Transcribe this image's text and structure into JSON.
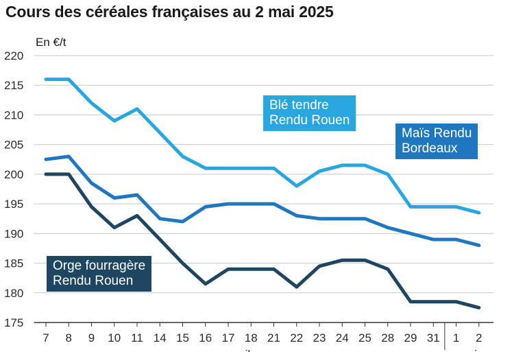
{
  "title": "Cours des céréales françaises au 2 mai 2025",
  "colors": {
    "ble": "#27a6df",
    "mais": "#1f78bf",
    "orge": "#1e4661",
    "grid": "#c9c9c9",
    "axis": "#333333"
  },
  "chart_data": {
    "type": "line",
    "title": "Cours des céréales françaises au 2 mai 2025",
    "ylabel": "En €/t",
    "ylim": [
      175,
      220
    ],
    "yticks": [
      175,
      180,
      185,
      190,
      195,
      200,
      205,
      210,
      215,
      220
    ],
    "grid": true,
    "categories": [
      "7",
      "8",
      "9",
      "10",
      "11",
      "14",
      "15",
      "16",
      "17",
      "18",
      "21",
      "22",
      "23",
      "24",
      "25",
      "28",
      "29",
      "31",
      "1",
      "2"
    ],
    "month_labels": [
      "avril",
      "mai"
    ],
    "series": [
      {
        "name": "Blé tendre Rendu Rouen",
        "name_lines": [
          "Blé tendre",
          "Rendu Rouen"
        ],
        "color": "#27a6df",
        "values": [
          216,
          216,
          212,
          209,
          211,
          207,
          203,
          201,
          201,
          201,
          201,
          198,
          200.5,
          201.5,
          201.5,
          200,
          194.5,
          194.5,
          194.5,
          193.5
        ]
      },
      {
        "name": "Maïs Rendu Bordeaux",
        "name_lines": [
          "Maïs Rendu",
          "Bordeaux"
        ],
        "color": "#1f78bf",
        "values": [
          202.5,
          203,
          198.5,
          196,
          196.5,
          192.5,
          192,
          194.5,
          195,
          195,
          195,
          193,
          192.5,
          192.5,
          192.5,
          191,
          190,
          189,
          189,
          188
        ]
      },
      {
        "name": "Orge fourragère Rendu Rouen",
        "name_lines": [
          "Orge fourragère",
          "Rendu Rouen"
        ],
        "color": "#1e4661",
        "values": [
          200,
          200,
          194.5,
          191,
          193,
          189,
          185,
          181.5,
          184,
          184,
          184,
          181,
          184.5,
          185.5,
          185.5,
          184,
          178.5,
          178.5,
          178.5,
          177.5
        ]
      }
    ]
  }
}
